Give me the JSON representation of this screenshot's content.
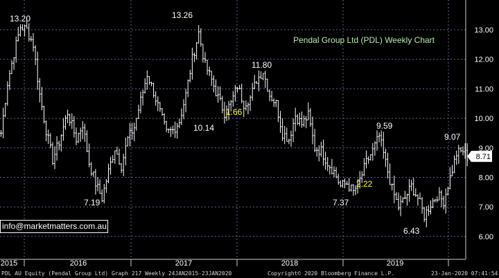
{
  "chart_data": {
    "type": "bar",
    "title": "Pendal Group Ltd (PDL) Weekly Chart",
    "ylim": [
      5.65,
      13.6
    ],
    "y_ticks": [
      "6.00",
      "7.00",
      "8.00",
      "9.00",
      "10.00",
      "11.00",
      "12.00",
      "13.00"
    ],
    "x_ticks": [
      "2015",
      "2016",
      "2017",
      "2018",
      "2019"
    ],
    "last_price": "8.71",
    "colors": {
      "background": "#000000",
      "bars": "#ffffff",
      "grid": "#5a6b8c",
      "title": "#b8f0b0",
      "highlight": "#ffff4d",
      "last_price_box": "#ffffff"
    },
    "price_anchors": [
      [
        0,
        9.5
      ],
      [
        3,
        11.2
      ],
      [
        6,
        12.2
      ],
      [
        9,
        13.1
      ],
      [
        12,
        13.0
      ],
      [
        15,
        12.5
      ],
      [
        18,
        10.8
      ],
      [
        21,
        9.6
      ],
      [
        24,
        8.6
      ],
      [
        27,
        9.2
      ],
      [
        31,
        10.2
      ],
      [
        35,
        9.3
      ],
      [
        38,
        9.8
      ],
      [
        41,
        8.5
      ],
      [
        44,
        7.8
      ],
      [
        47,
        7.3
      ],
      [
        50,
        8.2
      ],
      [
        53,
        9.0
      ],
      [
        56,
        8.4
      ],
      [
        59,
        9.3
      ],
      [
        62,
        9.7
      ],
      [
        65,
        10.6
      ],
      [
        68,
        11.5
      ],
      [
        71,
        10.9
      ],
      [
        74,
        10.2
      ],
      [
        77,
        9.5
      ],
      [
        80,
        9.6
      ],
      [
        83,
        9.9
      ],
      [
        86,
        10.8
      ],
      [
        89,
        12.0
      ],
      [
        92,
        12.9
      ],
      [
        95,
        11.8
      ],
      [
        98,
        11.3
      ],
      [
        101,
        10.7
      ],
      [
        104,
        10.2
      ],
      [
        107,
        10.5
      ],
      [
        110,
        11.1
      ],
      [
        113,
        10.5
      ],
      [
        116,
        10.7
      ],
      [
        119,
        11.3
      ],
      [
        122,
        11.6
      ],
      [
        125,
        10.8
      ],
      [
        128,
        10.5
      ],
      [
        131,
        9.5
      ],
      [
        134,
        9.3
      ],
      [
        137,
        10.1
      ],
      [
        140,
        9.8
      ],
      [
        143,
        10.1
      ],
      [
        146,
        9.0
      ],
      [
        149,
        8.9
      ],
      [
        152,
        8.5
      ],
      [
        155,
        8.2
      ],
      [
        158,
        7.7
      ],
      [
        161,
        7.8
      ],
      [
        164,
        7.5
      ],
      [
        167,
        7.9
      ],
      [
        170,
        8.5
      ],
      [
        173,
        8.9
      ],
      [
        176,
        9.4
      ],
      [
        179,
        8.5
      ],
      [
        182,
        7.6
      ],
      [
        185,
        7.0
      ],
      [
        188,
        7.3
      ],
      [
        191,
        7.7
      ],
      [
        194,
        7.3
      ],
      [
        197,
        6.7
      ],
      [
        200,
        7.1
      ],
      [
        203,
        7.4
      ],
      [
        206,
        7.2
      ],
      [
        209,
        8.0
      ],
      [
        212,
        8.8
      ],
      [
        215,
        8.9
      ],
      [
        217,
        8.7
      ]
    ],
    "annotations": [
      {
        "text": "13.20",
        "color": "white"
      },
      {
        "text": "13.26",
        "color": "white"
      },
      {
        "text": "11.80",
        "color": "white"
      },
      {
        "text": "1.66",
        "color": "yellow"
      },
      {
        "text": "10.14",
        "color": "white"
      },
      {
        "text": "7.19",
        "color": "white"
      },
      {
        "text": "9.59",
        "color": "white"
      },
      {
        "text": "2.22",
        "color": "yellow"
      },
      {
        "text": "7.37",
        "color": "white"
      },
      {
        "text": "9.07",
        "color": "white"
      },
      {
        "text": "6.43",
        "color": "white"
      }
    ]
  },
  "overlay": {
    "email": "info@marketmatters.com.au"
  },
  "footer": {
    "left": "PDL AU Equity (Pendal Group Ltd) Graph 217  Weekly 24JAN2015-23JAN2020",
    "center": "Copyright© 2020 Bloomberg Finance L.P.",
    "right": "23-Jan-2020 07:41:54"
  }
}
